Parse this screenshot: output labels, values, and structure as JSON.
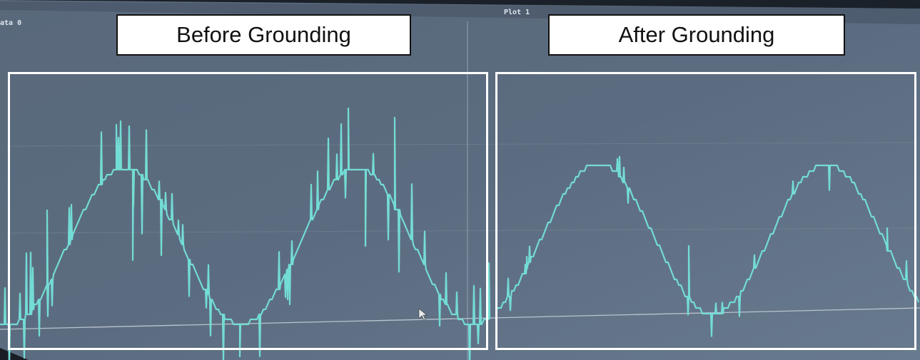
{
  "screen": {
    "plot_label": "Plot 1",
    "data_label": "ata 0"
  },
  "captions": {
    "before": "Before Grounding",
    "after": "After Grounding"
  },
  "colors": {
    "background": "#566578",
    "trace": "#73dcd4",
    "caption_bg": "#ffffff",
    "frame": "#ffffff"
  }
}
